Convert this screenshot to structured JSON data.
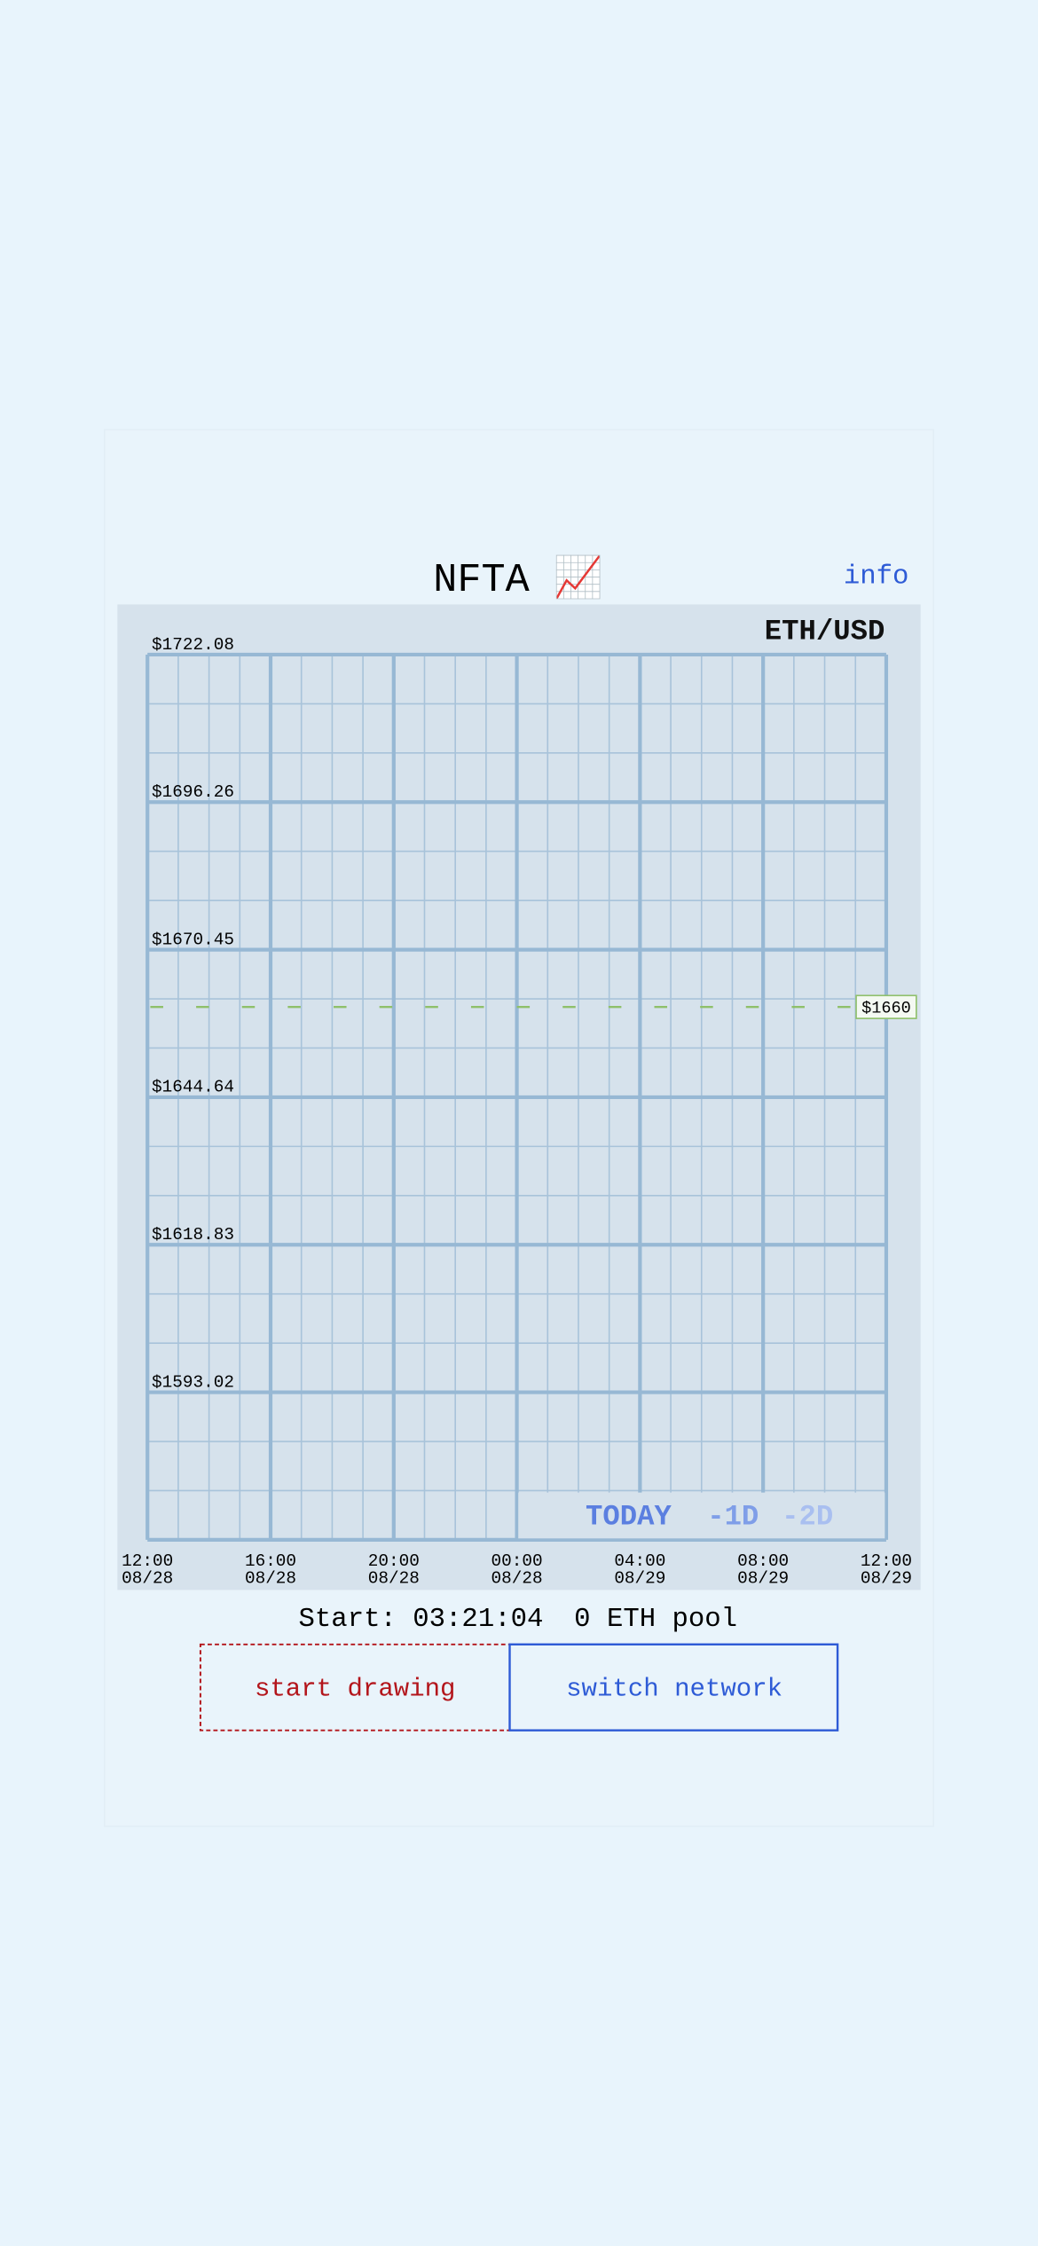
{
  "header": {
    "title": "NFTA 📈",
    "info": "info"
  },
  "chart": {
    "pair": "ETH/USD",
    "price_labels": [
      "$1722.08",
      "$1696.26",
      "$1670.45",
      "$1644.64",
      "$1618.83",
      "$1593.02"
    ],
    "current_price": "$1660",
    "time_labels": [
      {
        "time": "12:00",
        "date": "08/28"
      },
      {
        "time": "16:00",
        "date": "08/28"
      },
      {
        "time": "20:00",
        "date": "08/28"
      },
      {
        "time": "00:00",
        "date": "08/28"
      },
      {
        "time": "04:00",
        "date": "08/29"
      },
      {
        "time": "08:00",
        "date": "08/29"
      },
      {
        "time": "12:00",
        "date": "08/29"
      }
    ],
    "ranges": [
      "TODAY",
      "-1D",
      "-2D"
    ]
  },
  "status": {
    "start": "Start: 03:21:04",
    "pool": "0 ETH pool"
  },
  "buttons": {
    "draw": "start drawing",
    "network": "switch network"
  }
}
